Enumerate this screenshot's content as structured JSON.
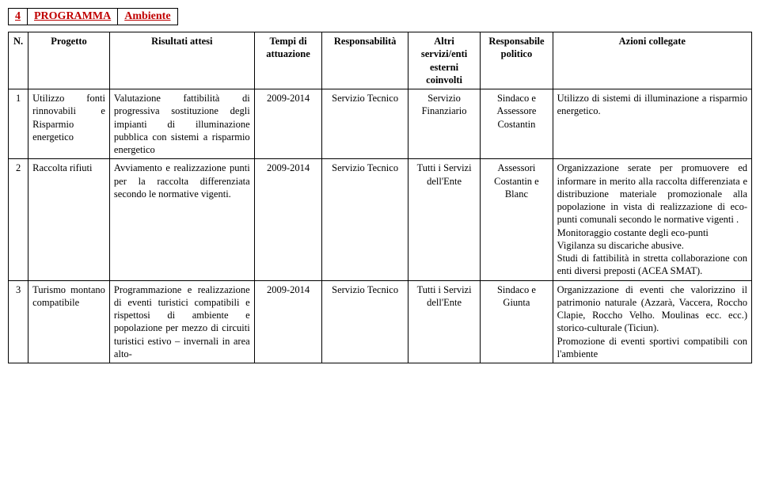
{
  "title": {
    "num": "4",
    "programma": "PROGRAMMA",
    "ambiente": "Ambiente"
  },
  "headers": {
    "n": "N.",
    "progetto": "Progetto",
    "risultati": "Risultati attesi",
    "tempi": "Tempi di attuazione",
    "responsabilita": "Responsabilità",
    "altri": "Altri servizi/enti esterni coinvolti",
    "resp_politico": "Responsabile politico",
    "azioni": "Azioni collegate"
  },
  "rows": [
    {
      "n": "1",
      "progetto": "Utilizzo fonti rinnovabili e Risparmio energetico",
      "risultati": "Valutazione fattibilità di progressiva sostituzione degli impianti di illuminazione pubblica con sistemi a risparmio energetico",
      "tempi": "2009-2014",
      "responsabilita": "Servizio Tecnico",
      "altri": "Servizio Finanziario",
      "resp_politico": "Sindaco e Assessore Costantin",
      "azioni": "Utilizzo di sistemi di illuminazione a risparmio energetico."
    },
    {
      "n": "2",
      "progetto": "Raccolta rifiuti",
      "risultati": "Avviamento e realizzazione punti per la raccolta differenziata secondo le normative vigenti.",
      "tempi": "2009-2014",
      "responsabilita": "Servizio Tecnico",
      "altri": "Tutti i Servizi dell'Ente",
      "resp_politico": "Assessori Costantin e Blanc",
      "azioni": "Organizzazione serate per promuovere ed informare in merito alla raccolta differenziata e distribuzione materiale promozionale alla popolazione in vista di realizzazione di eco-punti comunali secondo le normative vigenti .\nMonitoraggio costante degli eco-punti\nVigilanza su discariche abusive.\nStudi di fattibilità in stretta collaborazione con enti diversi preposti (ACEA SMAT)."
    },
    {
      "n": "3",
      "progetto": "Turismo montano compatibile",
      "risultati": "Programmazione e realizzazione di eventi turistici compatibili e rispettosi di ambiente e popolazione per mezzo di circuiti turistici estivo – invernali in area alto-",
      "tempi": "2009-2014",
      "responsabilita": "Servizio Tecnico",
      "altri": "Tutti i Servizi dell'Ente",
      "resp_politico": "Sindaco e Giunta",
      "azioni": "Organizzazione di eventi che valorizzino il patrimonio naturale (Azzarà, Vaccera, Roccho Clapie, Roccho Velho. Moulinas ecc. ecc.) storico-culturale (Ticiun).\nPromozione di eventi sportivi compatibili con l'ambiente"
    }
  ]
}
